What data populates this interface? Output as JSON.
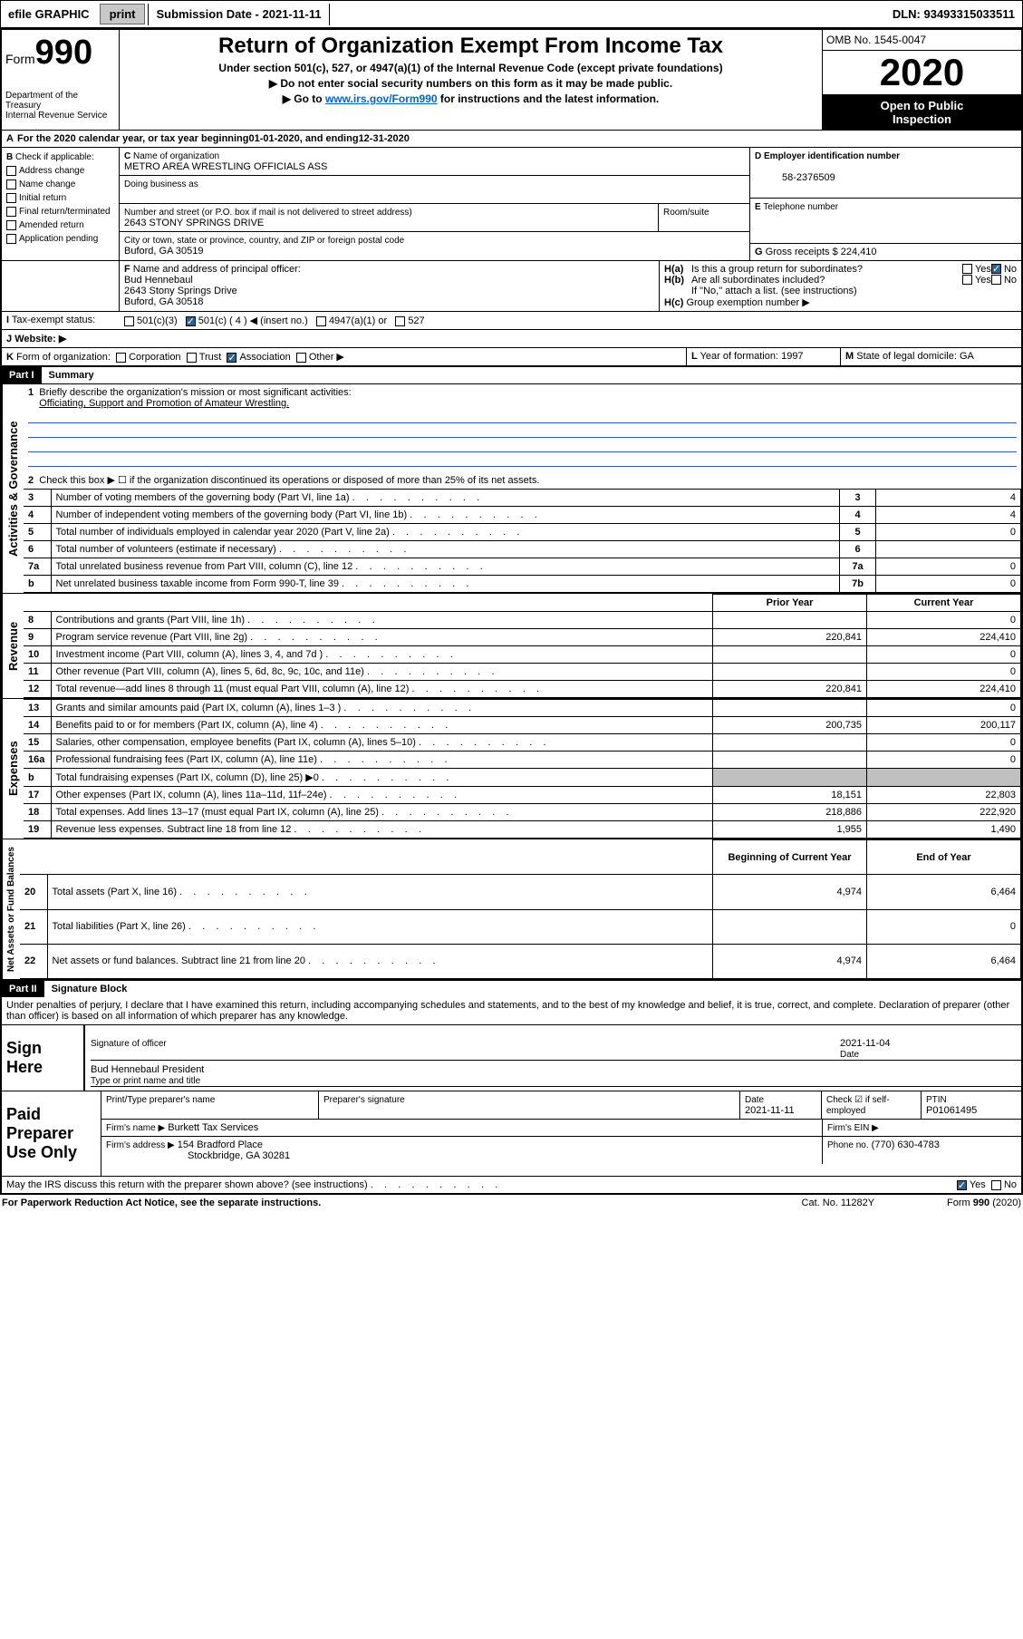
{
  "toolbar": {
    "efile": "efile GRAPHIC",
    "print": "print",
    "subdate_label": "Submission Date - ",
    "subdate": "2021-11-11",
    "dln_label": "DLN: ",
    "dln": "93493315033511"
  },
  "header": {
    "form": "Form",
    "num": "990",
    "dept": "Department of the Treasury",
    "irs": "Internal Revenue Service",
    "title": "Return of Organization Exempt From Income Tax",
    "sub1": "Under section 501(c), 527, or 4947(a)(1) of the Internal Revenue Code (except private foundations)",
    "sub2": "Do not enter social security numbers on this form as it may be made public.",
    "sub3_pre": "Go to ",
    "sub3_link": "www.irs.gov/Form990",
    "sub3_post": " for instructions and the latest information.",
    "omb": "OMB No. 1545-0047",
    "year": "2020",
    "open1": "Open to Public",
    "open2": "Inspection"
  },
  "periodA": {
    "text": "For the 2020 calendar year, or tax year beginning ",
    "begin": "01-01-2020",
    "mid": ", and ending ",
    "end": "12-31-2020"
  },
  "B": {
    "label": "Check if applicable:",
    "opts": [
      "Address change",
      "Name change",
      "Initial return",
      "Final return/terminated",
      "Amended return",
      "Application pending"
    ]
  },
  "C": {
    "name_label": "Name of organization",
    "name": "METRO AREA WRESTLING OFFICIALS ASS",
    "dba_label": "Doing business as",
    "dba": "",
    "addr_label": "Number and street (or P.O. box if mail is not delivered to street address)",
    "room_label": "Room/suite",
    "addr": "2643 STONY SPRINGS DRIVE",
    "city_label": "City or town, state or province, country, and ZIP or foreign postal code",
    "city": "Buford, GA  30519"
  },
  "D": {
    "label": "Employer identification number",
    "value": "58-2376509"
  },
  "E": {
    "label": "Telephone number",
    "value": ""
  },
  "G": {
    "label": "Gross receipts $",
    "value": "224,410"
  },
  "F": {
    "label": "Name and address of principal officer:",
    "name": "Bud Hennebaul",
    "addr1": "2643 Stony Springs Drive",
    "addr2": "Buford, GA  30518"
  },
  "H": {
    "a": "Is this a group return for subordinates?",
    "a_yes": "Yes",
    "a_no": "No",
    "b": "Are all subordinates included?",
    "b_yes": "Yes",
    "b_no": "No",
    "b_note": "If \"No,\" attach a list. (see instructions)",
    "c": "Group exemption number ▶"
  },
  "I": {
    "label": "Tax-exempt status:",
    "c3": "501(c)(3)",
    "c": "501(c) ( ",
    "cnum": "4",
    "cpost": " ) ◀ (insert no.)",
    "a1": "4947(a)(1) or",
    "s527": "527"
  },
  "J": {
    "label": "Website: ▶",
    "value": ""
  },
  "K": {
    "label": "Form of organization:",
    "corp": "Corporation",
    "trust": "Trust",
    "assoc": "Association",
    "other": "Other ▶"
  },
  "L": {
    "label": "Year of formation:",
    "value": "1997"
  },
  "M": {
    "label": "State of legal domicile:",
    "value": "GA"
  },
  "part1": {
    "hdr": "Part I",
    "title": "Summary",
    "l1": "Briefly describe the organization's mission or most significant activities:",
    "l1v": "Officiating, Support and Promotion of Amateur Wrestling.",
    "l2": "Check this box ▶ ☐ if the organization discontinued its operations or disposed of more than 25% of its net assets.",
    "vtab_ag": "Activities & Governance",
    "vtab_rev": "Revenue",
    "vtab_exp": "Expenses",
    "vtab_net": "Net Assets or Fund Balances",
    "rows_ag": [
      {
        "n": "3",
        "t": "Number of voting members of the governing body (Part VI, line 1a)",
        "b": "3",
        "v": "4"
      },
      {
        "n": "4",
        "t": "Number of independent voting members of the governing body (Part VI, line 1b)",
        "b": "4",
        "v": "4"
      },
      {
        "n": "5",
        "t": "Total number of individuals employed in calendar year 2020 (Part V, line 2a)",
        "b": "5",
        "v": "0"
      },
      {
        "n": "6",
        "t": "Total number of volunteers (estimate if necessary)",
        "b": "6",
        "v": ""
      },
      {
        "n": "7a",
        "t": "Total unrelated business revenue from Part VIII, column (C), line 12",
        "b": "7a",
        "v": "0"
      },
      {
        "n": "b",
        "t": "Net unrelated business taxable income from Form 990-T, line 39",
        "b": "7b",
        "v": "0"
      }
    ],
    "col_prior": "Prior Year",
    "col_current": "Current Year",
    "rows_rev": [
      {
        "n": "8",
        "t": "Contributions and grants (Part VIII, line 1h)",
        "p": "",
        "c": "0"
      },
      {
        "n": "9",
        "t": "Program service revenue (Part VIII, line 2g)",
        "p": "220,841",
        "c": "224,410"
      },
      {
        "n": "10",
        "t": "Investment income (Part VIII, column (A), lines 3, 4, and 7d )",
        "p": "",
        "c": "0"
      },
      {
        "n": "11",
        "t": "Other revenue (Part VIII, column (A), lines 5, 6d, 8c, 9c, 10c, and 11e)",
        "p": "",
        "c": "0"
      },
      {
        "n": "12",
        "t": "Total revenue—add lines 8 through 11 (must equal Part VIII, column (A), line 12)",
        "p": "220,841",
        "c": "224,410"
      }
    ],
    "rows_exp": [
      {
        "n": "13",
        "t": "Grants and similar amounts paid (Part IX, column (A), lines 1–3 )",
        "p": "",
        "c": "0"
      },
      {
        "n": "14",
        "t": "Benefits paid to or for members (Part IX, column (A), line 4)",
        "p": "200,735",
        "c": "200,117"
      },
      {
        "n": "15",
        "t": "Salaries, other compensation, employee benefits (Part IX, column (A), lines 5–10)",
        "p": "",
        "c": "0"
      },
      {
        "n": "16a",
        "t": "Professional fundraising fees (Part IX, column (A), line 11e)",
        "p": "",
        "c": "0"
      },
      {
        "n": "b",
        "t": "Total fundraising expenses (Part IX, column (D), line 25) ▶0",
        "p": "grey",
        "c": "grey"
      },
      {
        "n": "17",
        "t": "Other expenses (Part IX, column (A), lines 11a–11d, 11f–24e)",
        "p": "18,151",
        "c": "22,803"
      },
      {
        "n": "18",
        "t": "Total expenses. Add lines 13–17 (must equal Part IX, column (A), line 25)",
        "p": "218,886",
        "c": "222,920"
      },
      {
        "n": "19",
        "t": "Revenue less expenses. Subtract line 18 from line 12",
        "p": "1,955",
        "c": "1,490"
      }
    ],
    "col_begin": "Beginning of Current Year",
    "col_end": "End of Year",
    "rows_net": [
      {
        "n": "20",
        "t": "Total assets (Part X, line 16)",
        "p": "4,974",
        "c": "6,464"
      },
      {
        "n": "21",
        "t": "Total liabilities (Part X, line 26)",
        "p": "",
        "c": "0"
      },
      {
        "n": "22",
        "t": "Net assets or fund balances. Subtract line 21 from line 20",
        "p": "4,974",
        "c": "6,464"
      }
    ]
  },
  "part2": {
    "hdr": "Part II",
    "title": "Signature Block",
    "perjury": "Under penalties of perjury, I declare that I have examined this return, including accompanying schedules and statements, and to the best of my knowledge and belief, it is true, correct, and complete. Declaration of preparer (other than officer) is based on all information of which preparer has any knowledge.",
    "sign_here": "Sign Here",
    "sig_officer": "Signature of officer",
    "date_label": "Date",
    "sig_date": "2021-11-04",
    "typed": "Bud Hennebaul  President",
    "typed_label": "Type or print name and title",
    "paid": "Paid Preparer Use Only",
    "prep_name_label": "Print/Type preparer's name",
    "prep_sig_label": "Preparer's signature",
    "prep_date_label": "Date",
    "prep_date": "2021-11-11",
    "check_self": "Check ☑ if self-employed",
    "ptin_label": "PTIN",
    "ptin": "P01061495",
    "firm_name_label": "Firm's name ▶",
    "firm_name": "Burkett Tax Services",
    "firm_ein_label": "Firm's EIN ▶",
    "firm_ein": "",
    "firm_addr_label": "Firm's address ▶",
    "firm_addr": "154 Bradford Place",
    "firm_city": "Stockbridge, GA  30281",
    "phone_label": "Phone no.",
    "phone": "(770) 630-4783",
    "discuss": "May the IRS discuss this return with the preparer shown above? (see instructions)",
    "yes": "Yes",
    "no": "No"
  },
  "footer": {
    "pra": "For Paperwork Reduction Act Notice, see the separate instructions.",
    "cat": "Cat. No. 11282Y",
    "form": "Form 990 (2020)"
  }
}
